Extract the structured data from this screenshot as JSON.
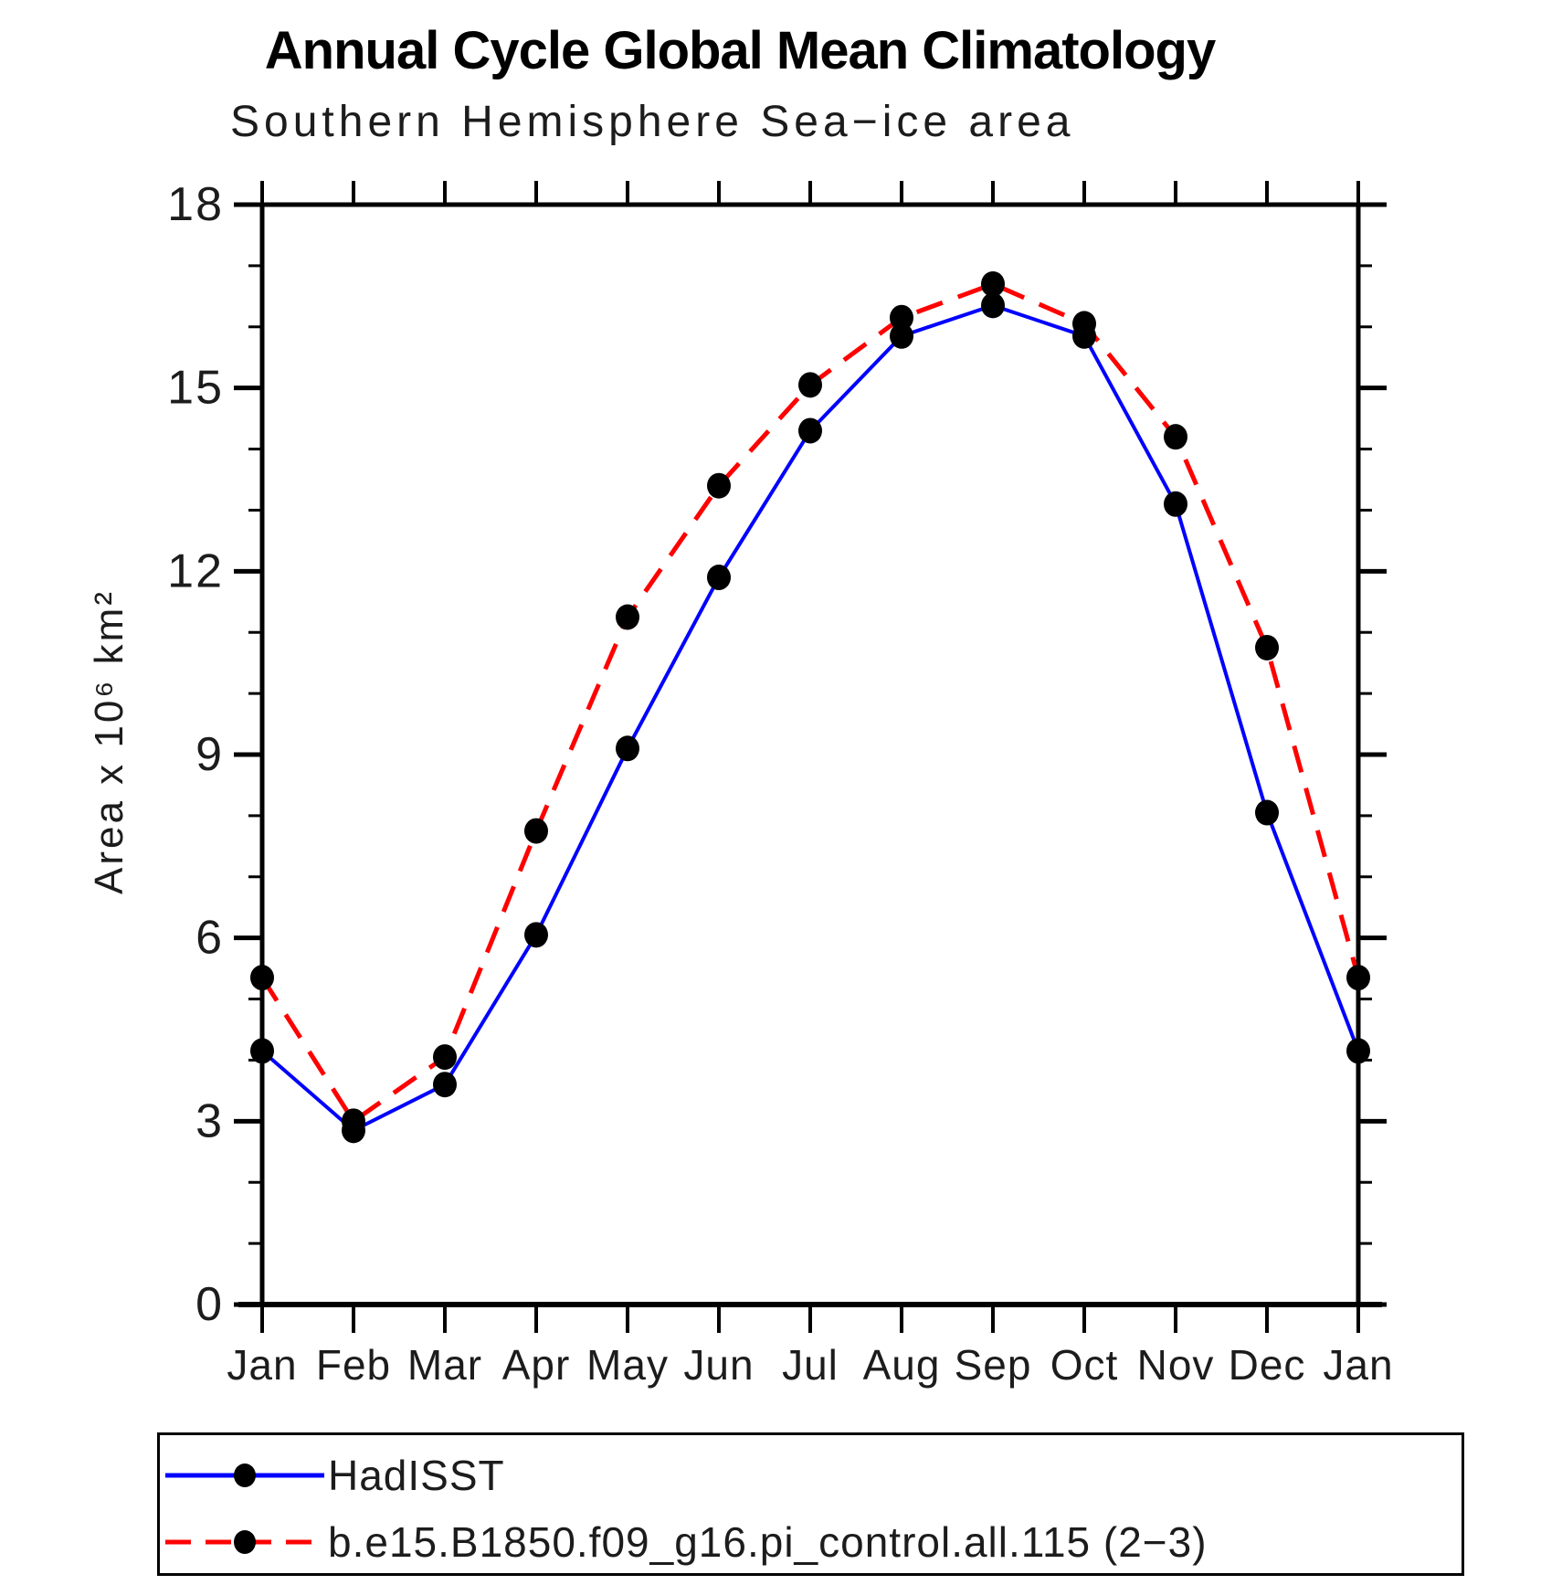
{
  "chart_data": {
    "type": "line",
    "title": "Annual Cycle Global Mean Climatology",
    "subtitle": "Southern Hemisphere Sea−ice area",
    "ylabel": "Area x 10⁶ km²",
    "xlabel": "",
    "x_categories": [
      "Jan",
      "Feb",
      "Mar",
      "Apr",
      "May",
      "Jun",
      "Jul",
      "Aug",
      "Sep",
      "Oct",
      "Nov",
      "Dec",
      "Jan"
    ],
    "ylim": [
      0,
      18
    ],
    "y_major_ticks": [
      0,
      3,
      6,
      9,
      12,
      15,
      18
    ],
    "y_minor_tick_step": 1,
    "grid": "off",
    "legend_position": "bottom-left-box",
    "frame_color": "#000000",
    "marker": "filled-circle",
    "marker_color": "#000000",
    "series": [
      {
        "name": "HadISST",
        "color": "#0000FF",
        "line_style": "solid",
        "values": [
          4.15,
          2.85,
          3.6,
          6.05,
          9.1,
          11.9,
          14.3,
          15.85,
          16.35,
          15.85,
          13.1,
          8.05,
          4.15
        ]
      },
      {
        "name": "b.e15.B1850.f09_g16.pi_control.all.115 (2−3)",
        "color": "#FF0000",
        "line_style": "dashed",
        "values": [
          5.35,
          3.0,
          4.05,
          7.75,
          11.25,
          13.4,
          15.05,
          16.15,
          16.7,
          16.05,
          14.2,
          10.75,
          5.35
        ]
      }
    ]
  }
}
